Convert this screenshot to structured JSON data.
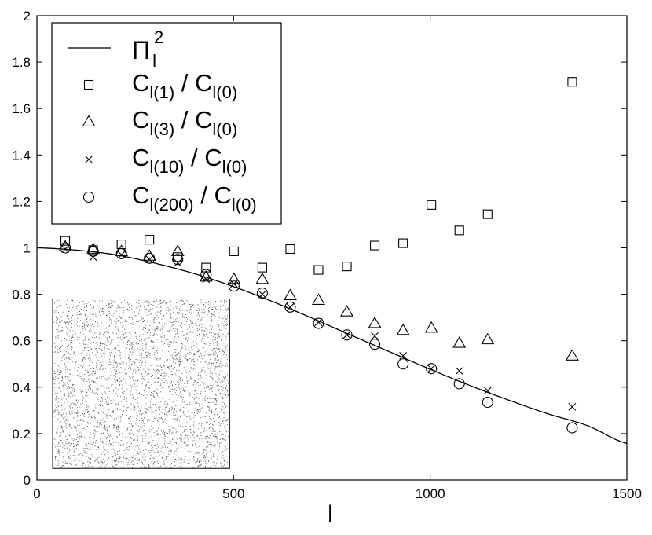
{
  "chart_data": {
    "type": "scatter",
    "title": "",
    "xlabel": "l",
    "ylabel": "",
    "xlim": [
      0,
      1500
    ],
    "ylim": [
      0,
      2
    ],
    "xticks": [
      0,
      500,
      1000,
      1500
    ],
    "yticks": [
      0,
      0.2,
      0.4,
      0.6,
      0.8,
      1,
      1.2,
      1.4,
      1.6,
      1.8,
      2
    ],
    "xtick_labels": [
      "0",
      "500",
      "1000",
      "1500"
    ],
    "ytick_labels": [
      "0",
      "0.2",
      "0.4",
      "0.6",
      "0.8",
      "1",
      "1.2",
      "1.4",
      "1.6",
      "1.8",
      "2"
    ],
    "grid": false,
    "legend_position": "top-left",
    "line": {
      "name_main": "Π",
      "name_sub": "l",
      "name_sup": "2",
      "style": "solid",
      "color": "#000000",
      "x": [
        0,
        100,
        200,
        300,
        400,
        500,
        600,
        700,
        800,
        900,
        1000,
        1100,
        1200,
        1300,
        1400,
        1500
      ],
      "y": [
        1.0,
        0.99,
        0.97,
        0.934,
        0.889,
        0.833,
        0.768,
        0.697,
        0.623,
        0.55,
        0.477,
        0.408,
        0.344,
        0.285,
        0.234,
        0.158
      ]
    },
    "series": [
      {
        "marker": "square",
        "label_num_main": "C",
        "label_num_sub": "l(1)",
        "label_sep": " / ",
        "label_den_main": "C",
        "label_den_sub": "l(0)",
        "x": [
          72,
          143,
          215,
          286,
          358,
          430,
          501,
          573,
          644,
          716,
          788,
          859,
          931,
          1003,
          1074,
          1146,
          1361
        ],
        "y": [
          1.03,
          0.99,
          1.015,
          1.035,
          0.96,
          0.915,
          0.985,
          0.915,
          0.995,
          0.905,
          0.92,
          1.01,
          1.02,
          1.185,
          1.075,
          1.145,
          1.715
        ]
      },
      {
        "marker": "triangle",
        "label_num_main": "C",
        "label_num_sub": "l(3)",
        "label_sep": " / ",
        "label_den_main": "C",
        "label_den_sub": "l(0)",
        "x": [
          72,
          143,
          215,
          286,
          358,
          430,
          501,
          573,
          644,
          716,
          788,
          859,
          931,
          1003,
          1074,
          1146,
          1361
        ],
        "y": [
          1.005,
          0.995,
          0.985,
          0.965,
          0.985,
          0.875,
          0.865,
          0.865,
          0.795,
          0.775,
          0.725,
          0.675,
          0.645,
          0.655,
          0.59,
          0.605,
          0.535
        ]
      },
      {
        "marker": "cross",
        "label_num_main": "C",
        "label_num_sub": "l(10)",
        "label_sep": " / ",
        "label_den_main": "C",
        "label_den_sub": "l(0)",
        "x": [
          72,
          143,
          215,
          286,
          358,
          430,
          501,
          573,
          644,
          716,
          788,
          859,
          931,
          1003,
          1074,
          1146,
          1361
        ],
        "y": [
          0.995,
          0.96,
          0.97,
          0.95,
          0.935,
          0.865,
          0.845,
          0.8,
          0.745,
          0.68,
          0.625,
          0.62,
          0.535,
          0.48,
          0.47,
          0.385,
          0.315
        ]
      },
      {
        "marker": "circle",
        "label_num_main": "C",
        "label_num_sub": "l(200)",
        "label_sep": " / ",
        "label_den_main": "C",
        "label_den_sub": "l(0)",
        "x": [
          72,
          143,
          215,
          286,
          358,
          430,
          501,
          573,
          644,
          716,
          788,
          859,
          931,
          1003,
          1074,
          1146,
          1361
        ],
        "y": [
          1.0,
          0.985,
          0.975,
          0.955,
          0.95,
          0.885,
          0.835,
          0.805,
          0.745,
          0.675,
          0.625,
          0.585,
          0.5,
          0.48,
          0.415,
          0.335,
          0.225
        ]
      }
    ],
    "inset": {
      "type": "random-point-field",
      "description_visible": false,
      "xlim_data": [
        40,
        490
      ],
      "ylim_data": [
        0.05,
        0.78
      ],
      "point_color": "#000000"
    }
  }
}
